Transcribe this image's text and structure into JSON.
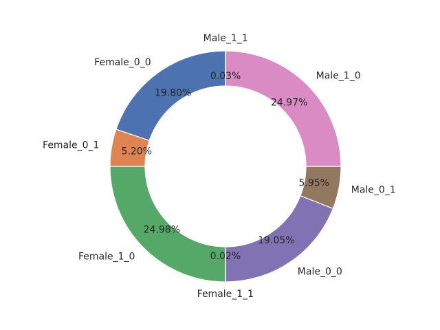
{
  "chart_data": {
    "type": "pie",
    "style": "donut",
    "title": "",
    "start_angle_deg": 90,
    "direction": "counterclockwise",
    "slices": [
      {
        "label": "Female_0_0",
        "percent": 19.8,
        "percent_label": "19.80%",
        "color": "#4c72b0"
      },
      {
        "label": "Female_0_1",
        "percent": 5.2,
        "percent_label": "5.20%",
        "color": "#dd8452"
      },
      {
        "label": "Female_1_0",
        "percent": 24.98,
        "percent_label": "24.98%",
        "color": "#55a868"
      },
      {
        "label": "Female_1_1",
        "percent": 0.02,
        "percent_label": "0.02%",
        "color": "#c44e52"
      },
      {
        "label": "Male_0_0",
        "percent": 19.05,
        "percent_label": "19.05%",
        "color": "#8172b3"
      },
      {
        "label": "Male_0_1",
        "percent": 5.95,
        "percent_label": "5.95%",
        "color": "#937860"
      },
      {
        "label": "Male_1_0",
        "percent": 24.97,
        "percent_label": "24.97%",
        "color": "#da8bc3"
      },
      {
        "label": "Male_1_1",
        "percent": 0.03,
        "percent_label": "0.03%",
        "color": "#8c8c8c"
      }
    ]
  }
}
